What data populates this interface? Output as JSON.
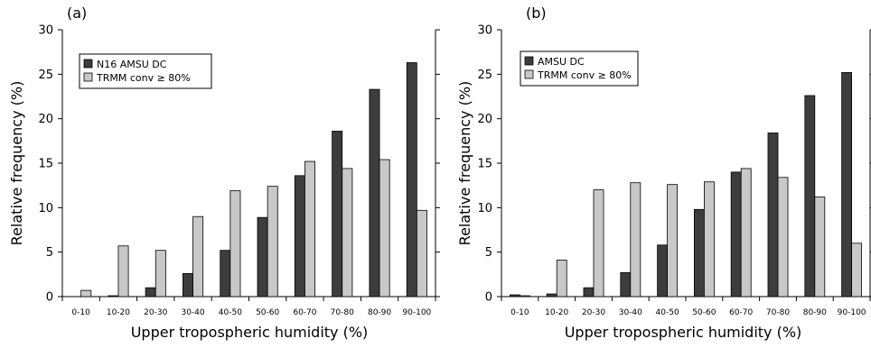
{
  "chart_data": [
    {
      "type": "bar",
      "panel_label": "(a)",
      "categories": [
        "0-10",
        "10-20",
        "20-30",
        "30-40",
        "40-50",
        "50-60",
        "60-70",
        "70-80",
        "80-90",
        "90-100"
      ],
      "series": [
        {
          "name": "N16 AMSU DC",
          "values": [
            0,
            0.1,
            1.0,
            2.6,
            5.2,
            8.9,
            13.6,
            18.6,
            23.3,
            26.3
          ]
        },
        {
          "name": "TRMM conv ≥ 80%",
          "values": [
            0.7,
            5.7,
            5.2,
            9.0,
            11.9,
            12.4,
            15.2,
            14.4,
            15.4,
            9.7
          ]
        }
      ],
      "xlabel": "Upper tropospheric humidity (%)",
      "ylabel": "Relative frequency (%)",
      "ylim": [
        0,
        30
      ],
      "yticks": [
        0,
        5,
        10,
        15,
        20,
        25,
        30
      ],
      "legend_position": "top-left",
      "grid": false
    },
    {
      "type": "bar",
      "panel_label": "(b)",
      "categories": [
        "0-10",
        "10-20",
        "20-30",
        "30-40",
        "40-50",
        "50-60",
        "60-70",
        "70-80",
        "80-90",
        "90-100"
      ],
      "series": [
        {
          "name": "AMSU DC",
          "values": [
            0.2,
            0.3,
            1.0,
            2.7,
            5.8,
            9.8,
            14.0,
            18.4,
            22.6,
            25.2
          ]
        },
        {
          "name": "TRMM conv ≥ 80%",
          "values": [
            0.1,
            4.1,
            12.0,
            12.8,
            12.6,
            12.9,
            14.4,
            13.4,
            11.2,
            6.0
          ]
        }
      ],
      "xlabel": "Upper tropospheric humidity (%)",
      "ylabel": "Relative frequency (%)",
      "ylim": [
        0,
        30
      ],
      "yticks": [
        0,
        5,
        10,
        15,
        20,
        25,
        30
      ],
      "legend_position": "top-left",
      "grid": false
    }
  ],
  "colors": {
    "series_dark": "#3d3d3d",
    "series_light": "#c8c8c8",
    "axis": "#000000"
  }
}
